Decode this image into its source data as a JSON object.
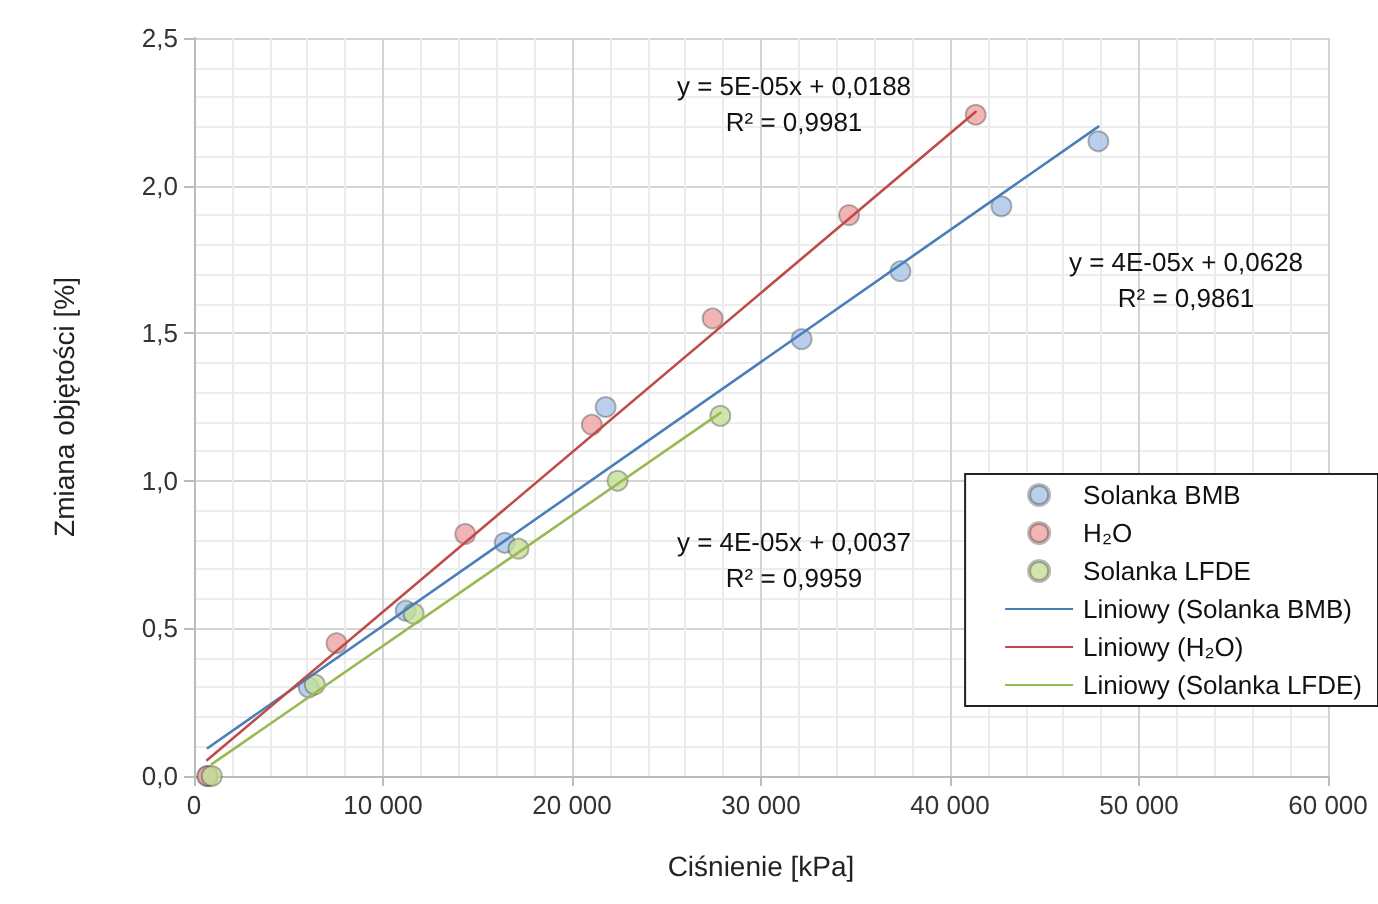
{
  "chart_data": {
    "type": "scatter",
    "xlabel": "Ciśnienie [kPa]",
    "ylabel": "Zmiana objętości [%]",
    "xlim": [
      0,
      60000
    ],
    "ylim": [
      0,
      2.5
    ],
    "xticks": [
      {
        "value": 0,
        "label": "0"
      },
      {
        "value": 10000,
        "label": "10 000"
      },
      {
        "value": 20000,
        "label": "20 000"
      },
      {
        "value": 30000,
        "label": "30 000"
      },
      {
        "value": 40000,
        "label": "40 000"
      },
      {
        "value": 50000,
        "label": "50 000"
      },
      {
        "value": 60000,
        "label": "60 000"
      }
    ],
    "yticks": [
      {
        "value": 0,
        "label": "0,0"
      },
      {
        "value": 0.5,
        "label": "0,5"
      },
      {
        "value": 1,
        "label": "1,0"
      },
      {
        "value": 1.5,
        "label": "1,5"
      },
      {
        "value": 2,
        "label": "2,0"
      },
      {
        "value": 2.5,
        "label": "2,5"
      }
    ],
    "grid": true,
    "legend": "bottom right",
    "marker": "circle",
    "series": [
      {
        "name": "Solanka BMB",
        "color": "#a8c3e6",
        "x": [
          730,
          6070,
          11200,
          16440,
          21780,
          32150,
          37380,
          42720,
          47850
        ],
        "values": [
          0,
          0.3,
          0.56,
          0.79,
          1.25,
          1.48,
          1.71,
          1.93,
          2.15
        ]
      },
      {
        "name": "H₂O",
        "color": "#eea3a3",
        "x": [
          700,
          7540,
          14350,
          21050,
          27440,
          34660,
          41360
        ],
        "values": [
          0,
          0.45,
          0.82,
          1.19,
          1.55,
          1.9,
          2.24
        ]
      },
      {
        "name": "Solanka LFDE",
        "color": "#c6df98",
        "x": [
          940,
          6390,
          11620,
          17170,
          22410,
          27850
        ],
        "values": [
          0,
          0.31,
          0.55,
          0.77,
          1.0,
          1.22
        ]
      },
      {
        "name": "Liniowy (Solanka BMB)",
        "type": "line",
        "marker": "none",
        "line_style": "solid",
        "color": "#4a7ebb",
        "x": [
          730,
          47850
        ],
        "values": [
          0.095,
          2.2
        ]
      },
      {
        "name": "Liniowy (H₂O)",
        "type": "line",
        "marker": "none",
        "line_style": "solid",
        "color": "#be4b48",
        "x": [
          700,
          41360
        ],
        "values": [
          0.054,
          2.25
        ]
      },
      {
        "name": "Liniowy (Solanka LFDE)",
        "type": "line",
        "marker": "none",
        "line_style": "solid",
        "color": "#98b954",
        "x": [
          940,
          27850
        ],
        "values": [
          0.04,
          1.23
        ]
      }
    ],
    "annotations": [
      "y = 5E-05x + 0,0188\nR² = 0,9981",
      "y = 4E-05x + 0,0628\nR² = 0,9861",
      "y = 4E-05x + 0,0037\nR² = 0,9959"
    ]
  }
}
